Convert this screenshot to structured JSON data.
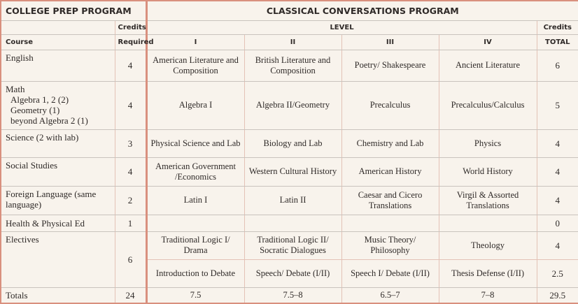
{
  "header": {
    "left": "COLLEGE PREP PROGRAM",
    "right": "CLASSICAL CONVERSATIONS PROGRAM",
    "credits": "Credits",
    "level": "LEVEL",
    "credits2": "Credits",
    "course": "Course",
    "required": "Required",
    "levels": [
      "I",
      "II",
      "III",
      "IV"
    ],
    "total": "TOTAL"
  },
  "rows": [
    {
      "course": "English",
      "required": "4",
      "levels": [
        "American Literature and Composition",
        "British Literature and Composition",
        "Poetry/ Shakespeare",
        "Ancient Literature"
      ],
      "total": "6"
    },
    {
      "course": "Math",
      "sub": [
        "Algebra 1, 2 (2)",
        "Geometry (1)",
        "beyond Algebra 2 (1)"
      ],
      "required": "4",
      "levels": [
        "Algebra I",
        "Algebra II/Geometry",
        "Precalculus",
        "Precalculus/Calculus"
      ],
      "total": "5"
    },
    {
      "course": "Science (2 with lab)",
      "required": "3",
      "levels": [
        "Physical Science and Lab",
        "Biology and Lab",
        "Chemistry and Lab",
        "Physics"
      ],
      "total": "4"
    },
    {
      "course": "Social Studies",
      "required": "4",
      "levels": [
        "American Government /Economics",
        "Western Cultural History",
        "American History",
        "World History"
      ],
      "total": "4"
    },
    {
      "course": "Foreign Language (same language)",
      "required": "2",
      "levels": [
        "Latin I",
        "Latin II",
        "Caesar and Cicero Translations",
        "Virgil & Assorted Translations"
      ],
      "total": "4"
    },
    {
      "course": "Health & Physical Ed",
      "required": "1",
      "levels": [
        "",
        "",
        "",
        ""
      ],
      "total": "0"
    },
    {
      "course": "Electives",
      "required": "6",
      "levels": [
        "Traditional Logic I/ Drama",
        "Traditional Logic II/ Socratic Dialogues",
        "Music Theory/ Philosophy",
        "Theology"
      ],
      "total": "4"
    },
    {
      "levels": [
        "Introduction to Debate",
        "Speech/ Debate (I/II)",
        "Speech I/ Debate (I/II)",
        "Thesis Defense (I/II)"
      ],
      "total": "2.5"
    }
  ],
  "totals": {
    "label": "Totals",
    "required": "24",
    "levels": [
      "7.5",
      "7.5–8",
      "6.5–7",
      "7–8"
    ],
    "total": "29.5"
  },
  "colors": {
    "border": "#d9907e",
    "background": "#f8f3ec"
  }
}
